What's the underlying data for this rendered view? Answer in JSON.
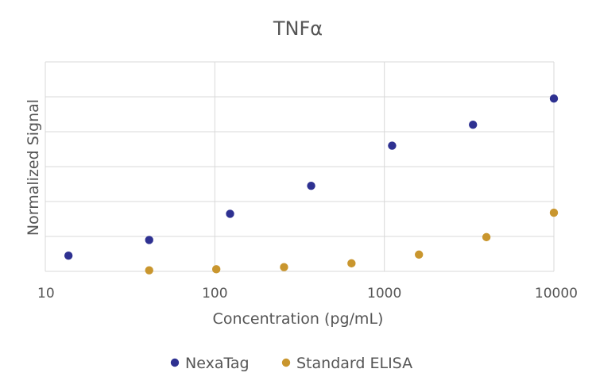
{
  "chart_data": {
    "type": "scatter",
    "title": "TNFα",
    "xlabel": "Concentration (pg/mL)",
    "ylabel": "Normalized Signal",
    "x_scale": "log",
    "xlim": [
      10,
      10000
    ],
    "ylim": [
      0,
      6
    ],
    "x_ticks": [
      10,
      100,
      1000,
      10000
    ],
    "x_tick_labels": [
      "10",
      "100",
      "1000",
      "10000"
    ],
    "y_gridlines": [
      0,
      1,
      2,
      3,
      4,
      5,
      6
    ],
    "grid": true,
    "legend_position": "bottom",
    "series": [
      {
        "name": "NexaTag",
        "color": "#2e3191",
        "x": [
          13.7,
          41,
          123,
          370,
          1111,
          3333,
          10000
        ],
        "y": [
          0.45,
          0.9,
          1.65,
          2.45,
          3.6,
          4.2,
          4.95
        ]
      },
      {
        "name": "Standard ELISA",
        "color": "#c9962e",
        "x": [
          41,
          102,
          256,
          640,
          1600,
          4000,
          10000
        ],
        "y": [
          0.03,
          0.06,
          0.12,
          0.23,
          0.48,
          0.98,
          1.68
        ]
      }
    ]
  }
}
